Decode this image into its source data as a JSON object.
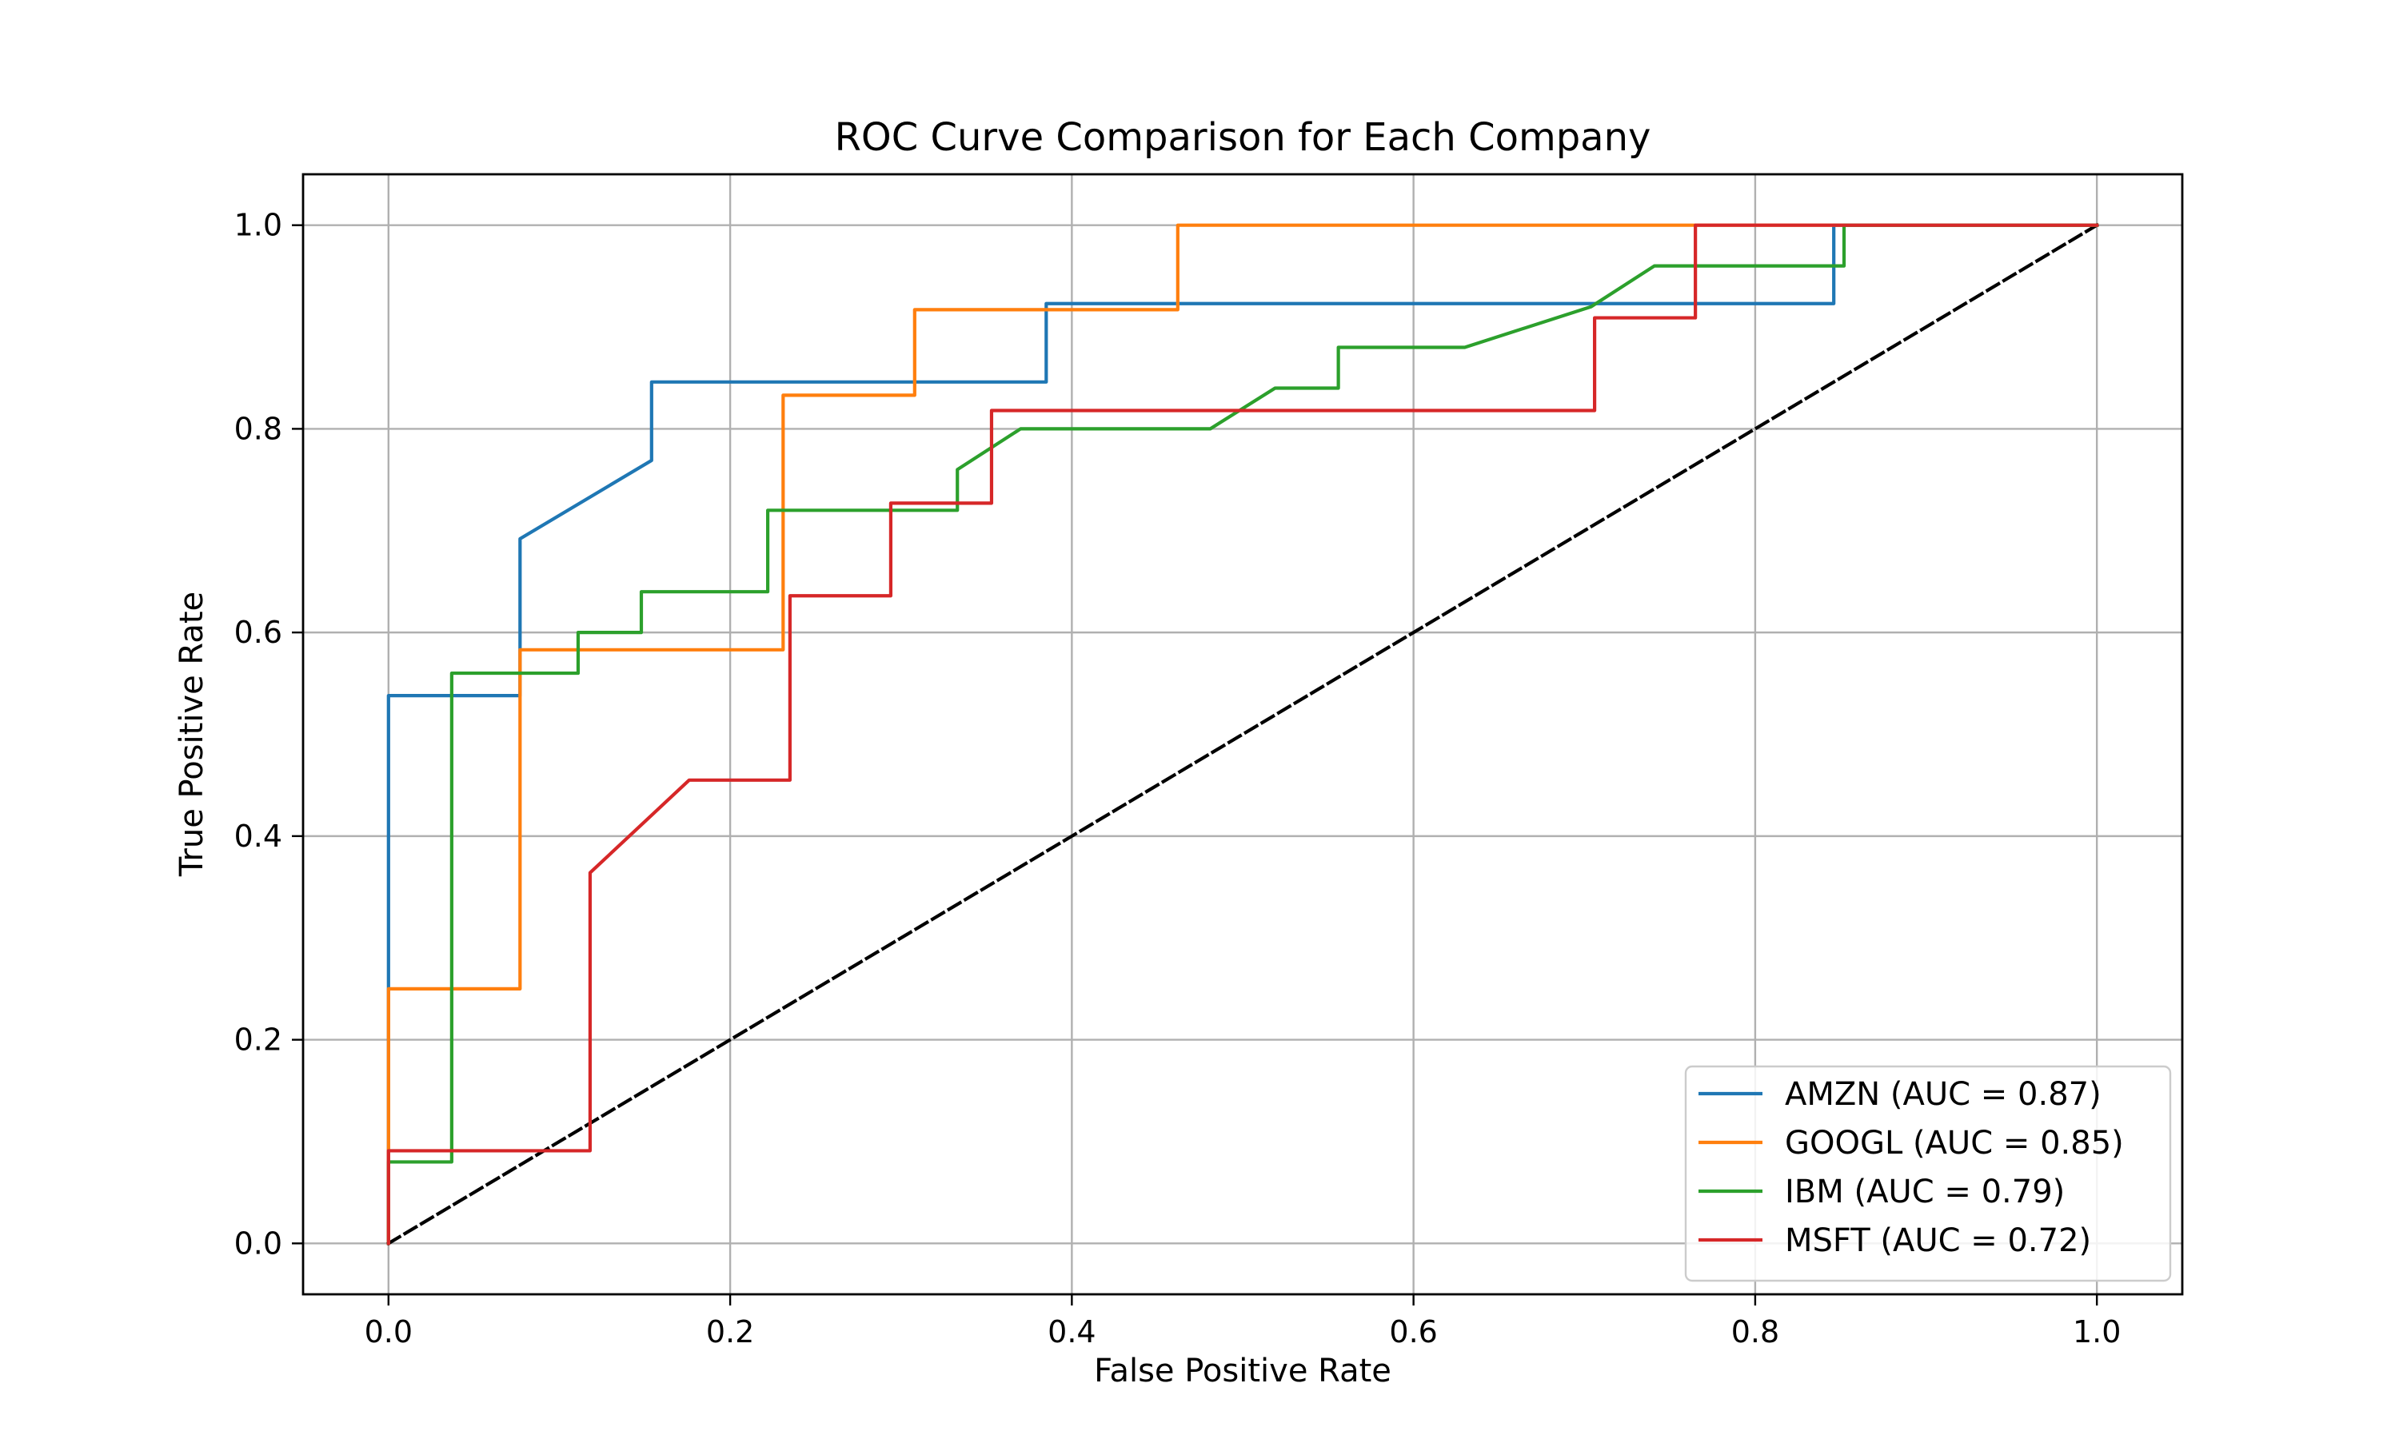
{
  "chart_data": {
    "type": "line",
    "title": "ROC Curve Comparison for Each Company",
    "xlabel": "False Positive Rate",
    "ylabel": "True Positive Rate",
    "xlim": [
      -0.05,
      1.05
    ],
    "ylim": [
      -0.05,
      1.05
    ],
    "xticks": [
      0.0,
      0.2,
      0.4,
      0.6,
      0.8,
      1.0
    ],
    "yticks": [
      0.0,
      0.2,
      0.4,
      0.6,
      0.8,
      1.0
    ],
    "xtick_labels": [
      "0.0",
      "0.2",
      "0.4",
      "0.6",
      "0.8",
      "1.0"
    ],
    "ytick_labels": [
      "0.0",
      "0.2",
      "0.4",
      "0.6",
      "0.8",
      "1.0"
    ],
    "grid": true,
    "legend_position": "lower-right",
    "series": [
      {
        "name": "AMZN (AUC = 0.87)",
        "color": "#1f77b4",
        "x": [
          0.0,
          0.0,
          0.0,
          0.075,
          0.077,
          0.077,
          0.154,
          0.154,
          0.385,
          0.385,
          0.846,
          0.846,
          1.0
        ],
        "y": [
          0.0,
          0.25,
          0.538,
          0.538,
          0.538,
          0.692,
          0.769,
          0.846,
          0.846,
          0.923,
          0.923,
          1.0,
          1.0
        ]
      },
      {
        "name": "GOOGL (AUC = 0.85)",
        "color": "#ff7f0e",
        "x": [
          0.0,
          0.0,
          0.077,
          0.077,
          0.231,
          0.231,
          0.308,
          0.308,
          0.462,
          0.462,
          1.0
        ],
        "y": [
          0.0,
          0.25,
          0.25,
          0.583,
          0.583,
          0.833,
          0.833,
          0.917,
          0.917,
          1.0,
          1.0
        ]
      },
      {
        "name": "IBM (AUC = 0.79)",
        "color": "#2ca02c",
        "x": [
          0.0,
          0.0,
          0.037,
          0.037,
          0.111,
          0.111,
          0.148,
          0.148,
          0.222,
          0.222,
          0.333,
          0.333,
          0.37,
          0.481,
          0.519,
          0.556,
          0.556,
          0.63,
          0.704,
          0.741,
          0.852,
          0.852,
          1.0
        ],
        "y": [
          0.0,
          0.08,
          0.08,
          0.56,
          0.56,
          0.6,
          0.6,
          0.64,
          0.64,
          0.72,
          0.72,
          0.76,
          0.8,
          0.8,
          0.84,
          0.84,
          0.88,
          0.88,
          0.92,
          0.96,
          0.96,
          1.0,
          1.0
        ]
      },
      {
        "name": "MSFT (AUC = 0.72)",
        "color": "#d62728",
        "x": [
          0.0,
          0.0,
          0.118,
          0.118,
          0.176,
          0.235,
          0.235,
          0.294,
          0.294,
          0.353,
          0.353,
          0.706,
          0.706,
          0.765,
          0.765,
          1.0
        ],
        "y": [
          0.0,
          0.091,
          0.091,
          0.364,
          0.455,
          0.455,
          0.636,
          0.636,
          0.727,
          0.727,
          0.818,
          0.818,
          0.909,
          0.909,
          1.0,
          1.0
        ]
      }
    ],
    "reference_line": {
      "color": "#000000",
      "style": "dashed",
      "x": [
        0.0,
        1.0
      ],
      "y": [
        0.0,
        1.0
      ]
    }
  }
}
